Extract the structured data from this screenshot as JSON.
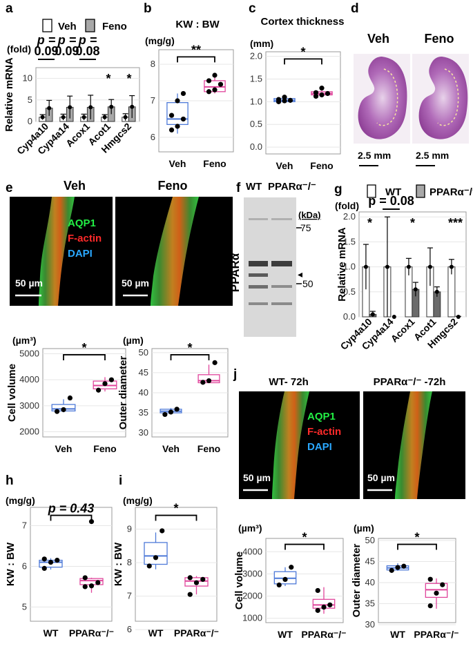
{
  "panels": {
    "a": "a",
    "b": "b",
    "c": "c",
    "d": "d",
    "e": "e",
    "f": "f",
    "g": "g",
    "h": "h",
    "i": "i",
    "j": "j"
  },
  "legend_a": {
    "veh": "Veh",
    "feno": "Feno"
  },
  "legend_g": {
    "wt": "WT",
    "ko": "PPARα⁻/⁻"
  },
  "colors": {
    "gray_bar": "#a8a8a8",
    "dark_bar": "#6b6b6b",
    "blue_box": "#4d79d8",
    "pink_box": "#e0449b",
    "aqp1": "#22ee44",
    "factin": "#ff2a2a",
    "dapi": "#2aa8ff"
  },
  "chart_data": [
    {
      "id": "a",
      "type": "bar",
      "unit": "(fold)",
      "ylabel": "Relative mRNA",
      "yticks": [
        0,
        5,
        10
      ],
      "ylim": [
        0,
        12.5
      ],
      "categories": [
        "Cyp4a10",
        "Cyp4a14",
        "Acox1",
        "Acot1",
        "Hmgcs2"
      ],
      "series": [
        {
          "name": "Veh",
          "values": [
            1,
            1,
            1,
            1,
            1
          ],
          "err": [
            0.6,
            0.7,
            0.7,
            0.6,
            0.8
          ]
        },
        {
          "name": "Feno",
          "values": [
            3.1,
            3.3,
            3.3,
            3.4,
            3.4
          ],
          "err": [
            1.8,
            2.6,
            2.8,
            1.7,
            2.6
          ]
        }
      ],
      "annotations": [
        {
          "cat": 0,
          "text": [
            "p =",
            "0.09"
          ],
          "bracket": true
        },
        {
          "cat": 1,
          "text": [
            "p =",
            "0.09"
          ],
          "bracket": false
        },
        {
          "cat": 2,
          "text": [
            "p =",
            "0.08"
          ],
          "bracket": true
        },
        {
          "cat": 3,
          "text": [
            "*"
          ],
          "bracket": false
        },
        {
          "cat": 4,
          "text": [
            "*"
          ],
          "bracket": false
        }
      ]
    },
    {
      "id": "b",
      "type": "box",
      "title": "KW : BW",
      "unit": "(mg/g)",
      "yticks": [
        6,
        7,
        8
      ],
      "ylim": [
        5.6,
        8.4
      ],
      "categories": [
        "Veh",
        "Feno"
      ],
      "boxes": [
        {
          "q1": 6.35,
          "median": 6.5,
          "q3": 6.95,
          "lo": 6.1,
          "hi": 7.2,
          "pts": [
            6.2,
            6.3,
            6.5,
            6.6,
            7.0,
            7.2
          ]
        },
        {
          "q1": 7.25,
          "median": 7.38,
          "q3": 7.55,
          "lo": 7.2,
          "hi": 7.75,
          "pts": [
            7.25,
            7.3,
            7.45,
            7.55,
            7.7
          ]
        }
      ],
      "sig": "**"
    },
    {
      "id": "c",
      "type": "box",
      "title": "Cortex thickness",
      "unit": "(mm)",
      "yticks": [
        "0.0",
        "0.5",
        "1.0",
        "1.5",
        "2.0"
      ],
      "ylim": [
        -0.15,
        2.1
      ],
      "categories": [
        "Veh",
        "Feno"
      ],
      "boxes": [
        {
          "q1": 1.0,
          "median": 1.03,
          "q3": 1.07,
          "lo": 0.98,
          "hi": 1.12,
          "pts": [
            1.0,
            1.02,
            1.03,
            1.05,
            1.1
          ]
        },
        {
          "q1": 1.15,
          "median": 1.18,
          "q3": 1.22,
          "lo": 1.12,
          "hi": 1.3,
          "pts": [
            1.12,
            1.15,
            1.18,
            1.2,
            1.3
          ]
        }
      ],
      "sig": "*"
    },
    {
      "id": "e-volume",
      "type": "box",
      "unit": "(µm³)",
      "ylabel": "Cell volume",
      "yticks": [
        2000,
        3000,
        4000,
        5000
      ],
      "ylim": [
        1800,
        5200
      ],
      "categories": [
        "Veh",
        "Feno"
      ],
      "boxes": [
        {
          "q1": 2800,
          "median": 2880,
          "q3": 3050,
          "lo": 2750,
          "hi": 3250,
          "pts": [
            2780,
            2850,
            3300
          ]
        },
        {
          "q1": 3650,
          "median": 3780,
          "q3": 3950,
          "lo": 3550,
          "hi": 4100,
          "pts": [
            3600,
            3850,
            4000
          ]
        }
      ],
      "sig": "*"
    },
    {
      "id": "e-diameter",
      "type": "box",
      "unit": "(µm)",
      "ylabel": "Outer diameter",
      "yticks": [
        30,
        35,
        40,
        45,
        50
      ],
      "ylim": [
        29,
        51
      ],
      "categories": [
        "Veh",
        "Feno"
      ],
      "boxes": [
        {
          "q1": 35,
          "median": 35.4,
          "q3": 35.9,
          "lo": 34.6,
          "hi": 36.2,
          "pts": [
            34.6,
            35.2,
            35.9
          ]
        },
        {
          "q1": 42.5,
          "median": 43,
          "q3": 44.5,
          "lo": 42.4,
          "hi": 47,
          "pts": [
            42.6,
            43.0,
            47.5
          ]
        }
      ],
      "sig": "*"
    },
    {
      "id": "g",
      "type": "bar",
      "unit": "(fold)",
      "ylabel": "Relative mRNA",
      "yticks": [
        "0.0",
        "0.5",
        "1.0",
        "1.5",
        "2.0"
      ],
      "ylim": [
        0,
        2.1
      ],
      "categories": [
        "Cyp4a10",
        "Cyp4a14",
        "Acox1",
        "Acot1",
        "Hmgcs2"
      ],
      "series": [
        {
          "name": "WT",
          "values": [
            1,
            1,
            1,
            1,
            1
          ],
          "err": [
            0.45,
            1.0,
            0.17,
            0.38,
            0.15
          ]
        },
        {
          "name": "PPARα⁻/⁻",
          "values": [
            0.05,
            0.0,
            0.55,
            0.5,
            0.0
          ],
          "err": [
            0.06,
            0.0,
            0.14,
            0.1,
            0.01
          ]
        }
      ],
      "annotations": [
        {
          "cat": 0,
          "text": [
            "*"
          ],
          "bracket": false
        },
        {
          "cat": 1,
          "text": [
            "p = 0.08"
          ],
          "bracket": true
        },
        {
          "cat": 2,
          "text": [
            "*"
          ],
          "bracket": false
        },
        {
          "cat": 4,
          "text": [
            "***"
          ],
          "bracket": false
        }
      ]
    },
    {
      "id": "h",
      "type": "box",
      "unit": "(mg/g)",
      "ylabel": "KW : BW",
      "yticks": [
        5,
        6,
        7
      ],
      "ylim": [
        4.65,
        7.45
      ],
      "categories": [
        "WT",
        "PPARα⁻/⁻"
      ],
      "boxes": [
        {
          "q1": 5.98,
          "median": 6.1,
          "q3": 6.15,
          "lo": 5.92,
          "hi": 6.2,
          "pts": [
            5.95,
            6.1,
            6.15,
            6.18
          ]
        },
        {
          "q1": 5.55,
          "median": 5.65,
          "q3": 5.7,
          "lo": 5.35,
          "hi": 5.72,
          "pts": [
            5.5,
            5.52,
            5.6,
            5.72,
            7.1
          ]
        }
      ],
      "sig": "p = 0.43"
    },
    {
      "id": "i",
      "type": "box",
      "unit": "(mg/g)",
      "ylabel": "KW : BW",
      "yticks": [
        6,
        7,
        8,
        9
      ],
      "ylim": [
        6.25,
        9.65
      ],
      "categories": [
        "WT",
        "PPARα⁻/⁻"
      ],
      "boxes": [
        {
          "q1": 7.95,
          "median": 8.2,
          "q3": 8.6,
          "lo": 7.8,
          "hi": 8.9,
          "pts": [
            7.9,
            8.15,
            8.95
          ]
        },
        {
          "q1": 7.3,
          "median": 7.45,
          "q3": 7.55,
          "lo": 7.05,
          "hi": 7.6,
          "pts": [
            7.05,
            7.4,
            7.5,
            7.55
          ]
        }
      ],
      "sig": "*"
    },
    {
      "id": "j-volume",
      "type": "box",
      "unit": "(µm³)",
      "ylabel": "Cell volume",
      "yticks": [
        1000,
        2000,
        3000,
        4000
      ],
      "ylim": [
        800,
        4600
      ],
      "categories": [
        "WT",
        "PPARα⁻/⁻"
      ],
      "boxes": [
        {
          "q1": 2550,
          "median": 2800,
          "q3": 3100,
          "lo": 2450,
          "hi": 3300,
          "pts": [
            2500,
            2750,
            3300
          ]
        },
        {
          "q1": 1450,
          "median": 1600,
          "q3": 1850,
          "lo": 1200,
          "hi": 2400,
          "pts": [
            1350,
            1500,
            1600,
            2250
          ]
        }
      ],
      "sig": "*"
    },
    {
      "id": "j-diameter",
      "type": "box",
      "unit": "(µm)",
      "ylabel": "Outer diameter",
      "yticks": [
        30,
        35,
        40,
        45,
        50
      ],
      "ylim": [
        30.5,
        50.5
      ],
      "categories": [
        "WT",
        "PPARα⁻/⁻"
      ],
      "boxes": [
        {
          "q1": 43,
          "median": 43.5,
          "q3": 44,
          "lo": 42.8,
          "hi": 44.6,
          "pts": [
            42.9,
            43.6,
            43.9
          ]
        },
        {
          "q1": 36.5,
          "median": 38.3,
          "q3": 39.8,
          "lo": 33.8,
          "hi": 41,
          "pts": [
            34.5,
            37.5,
            39.5,
            40.8
          ]
        }
      ],
      "sig": "*"
    }
  ],
  "d": {
    "veh": "Veh",
    "feno": "Feno",
    "scale1": "2.5 mm",
    "scale2": "2.5 mm"
  },
  "e": {
    "veh": "Veh",
    "feno": "Feno",
    "aqp1": "AQP1",
    "factin": "F-actin",
    "dapi": "DAPI",
    "scale1": "50 µm",
    "scale2": "50 µm"
  },
  "f": {
    "wt": "WT",
    "ko": "PPARα⁻/⁻",
    "kda": "(kDa)",
    "m75": "75",
    "m50": "50",
    "arrow": "◂",
    "side": "PPARα"
  },
  "j": {
    "wt": "WT- 72h",
    "ko": "PPARα⁻/⁻ -72h",
    "aqp1": "AQP1",
    "factin": "F-actin",
    "dapi": "DAPI",
    "scale1": "50 µm",
    "scale2": "50 µm"
  }
}
